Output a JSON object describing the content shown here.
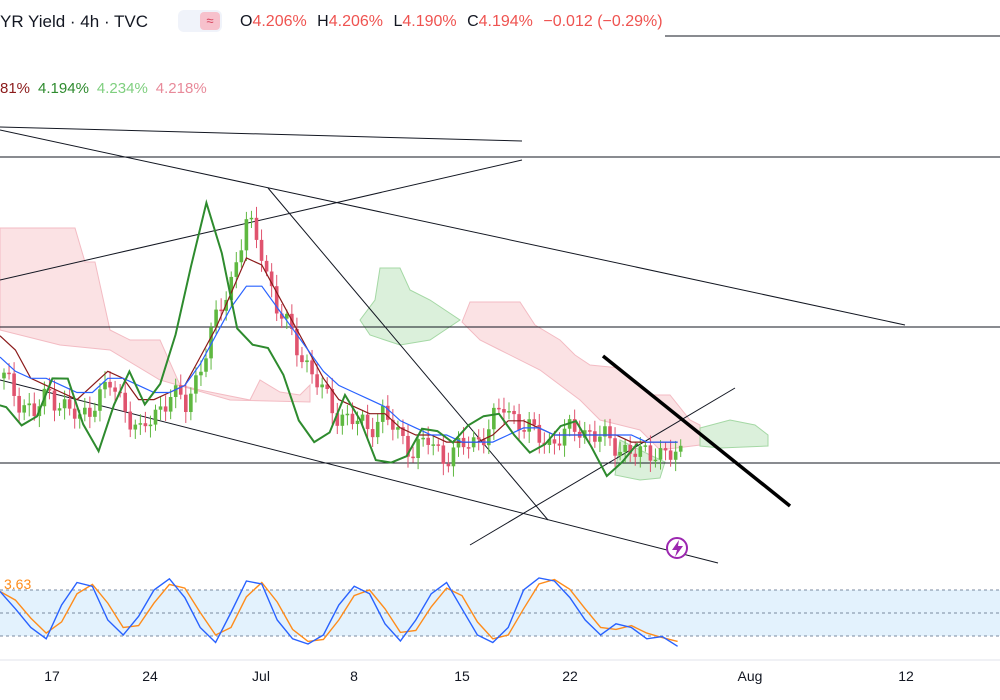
{
  "header": {
    "title": "YR Yield · 4h · TVC",
    "badge_icon": "wave-approx-icon",
    "open_label": "O",
    "open_value": "4.206%",
    "high_label": "H",
    "high_value": "4.206%",
    "low_label": "L",
    "low_value": "4.190%",
    "close_label": "C",
    "close_value": "4.194%",
    "change": "−0.012 (−0.29%)"
  },
  "indicator_legend": {
    "v1": "81%",
    "v2": "4.194%",
    "v3": "4.234%",
    "v4": "4.218%"
  },
  "stoch_legend": {
    "value": "3.63"
  },
  "colors": {
    "bull": "#5fb840",
    "bear": "#e0536e",
    "chikou": "#2e8b2e",
    "tenkan": "#2962ff",
    "kijun": "#8b1a1a",
    "cloud_bull": "#d8efd8",
    "cloud_bear": "#fbdde0",
    "stoch_k": "#2962ff",
    "stoch_d": "#ff8c1a",
    "stoch_band": "#e3f2fd"
  },
  "chart_data": {
    "type": "line",
    "x_ticks": [
      "17",
      "24",
      "Jul",
      "8",
      "15",
      "22",
      "Aug",
      "12"
    ],
    "series": [
      {
        "values": [
          4.3,
          4.27,
          4.25,
          4.28,
          4.26,
          4.24,
          4.27,
          4.29,
          4.26,
          4.22,
          4.25,
          4.28,
          4.26,
          4.32,
          4.38,
          4.44,
          4.52,
          4.48,
          4.4,
          4.36,
          4.32,
          4.28,
          4.25,
          4.24,
          4.23,
          4.25,
          4.22,
          4.2,
          4.21,
          4.19,
          4.2,
          4.21,
          4.23,
          4.26,
          4.24,
          4.22,
          4.21,
          4.22,
          4.23,
          4.22,
          4.21,
          4.2,
          4.19,
          4.2,
          4.19
        ]
      },
      {
        "values": [
          4.36,
          4.34,
          4.3,
          4.29,
          4.28,
          4.27,
          4.29,
          4.31,
          4.3,
          4.27,
          4.27,
          4.28,
          4.29,
          4.33,
          4.37,
          4.42,
          4.47,
          4.46,
          4.42,
          4.38,
          4.34,
          4.3,
          4.27,
          4.26,
          4.25,
          4.25,
          4.23,
          4.22,
          4.22,
          4.21,
          4.21,
          4.21,
          4.22,
          4.24,
          4.24,
          4.23,
          4.22,
          4.22,
          4.22,
          4.22,
          4.22,
          4.21,
          4.21,
          4.21,
          4.21
        ]
      },
      {
        "values": [
          4.33,
          4.31,
          4.3,
          4.3,
          4.29,
          4.28,
          4.28,
          4.3,
          4.3,
          4.29,
          4.28,
          4.28,
          4.29,
          4.32,
          4.36,
          4.4,
          4.43,
          4.43,
          4.4,
          4.37,
          4.34,
          4.31,
          4.29,
          4.28,
          4.27,
          4.26,
          4.24,
          4.23,
          4.22,
          4.22,
          4.21,
          4.21,
          4.21,
          4.22,
          4.23,
          4.23,
          4.22,
          4.22,
          4.22,
          4.22,
          4.22,
          4.22,
          4.21,
          4.21,
          4.21
        ]
      },
      {
        "values": [
          78,
          55,
          30,
          15,
          60,
          90,
          85,
          40,
          20,
          45,
          80,
          95,
          70,
          30,
          10,
          50,
          92,
          88,
          40,
          15,
          8,
          20,
          60,
          85,
          75,
          35,
          12,
          40,
          75,
          90,
          55,
          20,
          10,
          30,
          80,
          96,
          92,
          70,
          40,
          20,
          35,
          30,
          15,
          18,
          5
        ]
      }
    ]
  }
}
